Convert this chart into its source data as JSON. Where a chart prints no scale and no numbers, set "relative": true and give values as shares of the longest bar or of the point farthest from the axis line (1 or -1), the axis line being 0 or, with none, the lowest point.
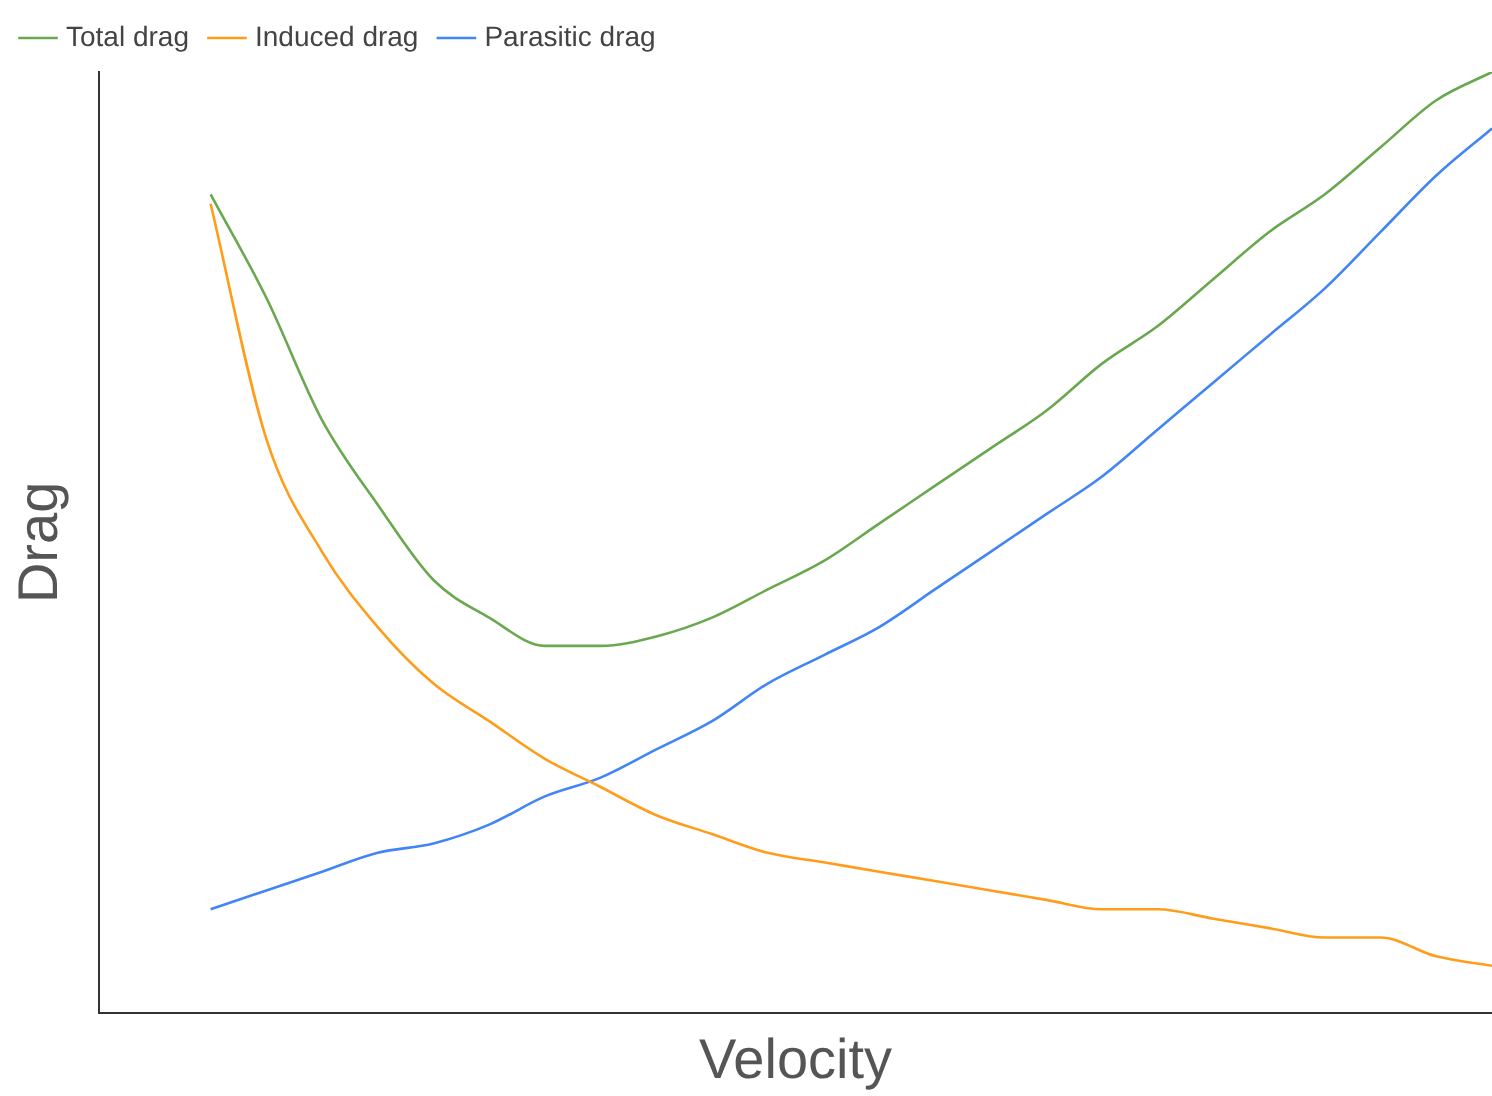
{
  "chart_data": {
    "type": "line",
    "relative": true,
    "xlabel": "Velocity",
    "ylabel": "Drag",
    "legend": "top left",
    "grid": false,
    "marker": "none",
    "line_style": "solid",
    "categories": [
      null,
      null,
      null,
      null,
      null,
      null,
      null,
      null,
      null,
      null,
      null,
      null,
      null,
      null,
      null,
      null,
      null,
      null,
      null,
      null,
      null,
      null,
      null,
      null,
      null,
      null
    ],
    "series": [
      {
        "name": "Total drag",
        "color": "#6aa84f",
        "values": [
          null,
          null,
          0.87,
          0.76,
          0.63,
          0.54,
          0.46,
          0.42,
          0.39,
          0.39,
          0.4,
          0.42,
          0.45,
          0.48,
          0.52,
          0.56,
          0.6,
          0.64,
          0.69,
          0.73,
          0.78,
          0.83,
          0.87,
          0.92,
          0.97,
          1
        ]
      },
      {
        "name": "Induced drag",
        "color": "#ff9d1b",
        "values": [
          null,
          null,
          0.86,
          0.61,
          0.49,
          0.41,
          0.35,
          0.31,
          0.27,
          0.24,
          0.21,
          0.19,
          0.17,
          0.16,
          0.15,
          0.14,
          0.13,
          0.12,
          0.11,
          0.11,
          0.1,
          0.09,
          0.08,
          0.08,
          0.06,
          0.05
        ]
      },
      {
        "name": "Parasitic drag",
        "color": "#4285f4",
        "values": [
          null,
          null,
          0.11,
          0.13,
          0.15,
          0.17,
          0.18,
          0.2,
          0.23,
          0.25,
          0.28,
          0.31,
          0.35,
          0.38,
          0.41,
          0.45,
          0.49,
          0.53,
          0.57,
          0.62,
          0.67,
          0.72,
          0.77,
          0.83,
          0.89,
          0.94
        ]
      }
    ]
  }
}
